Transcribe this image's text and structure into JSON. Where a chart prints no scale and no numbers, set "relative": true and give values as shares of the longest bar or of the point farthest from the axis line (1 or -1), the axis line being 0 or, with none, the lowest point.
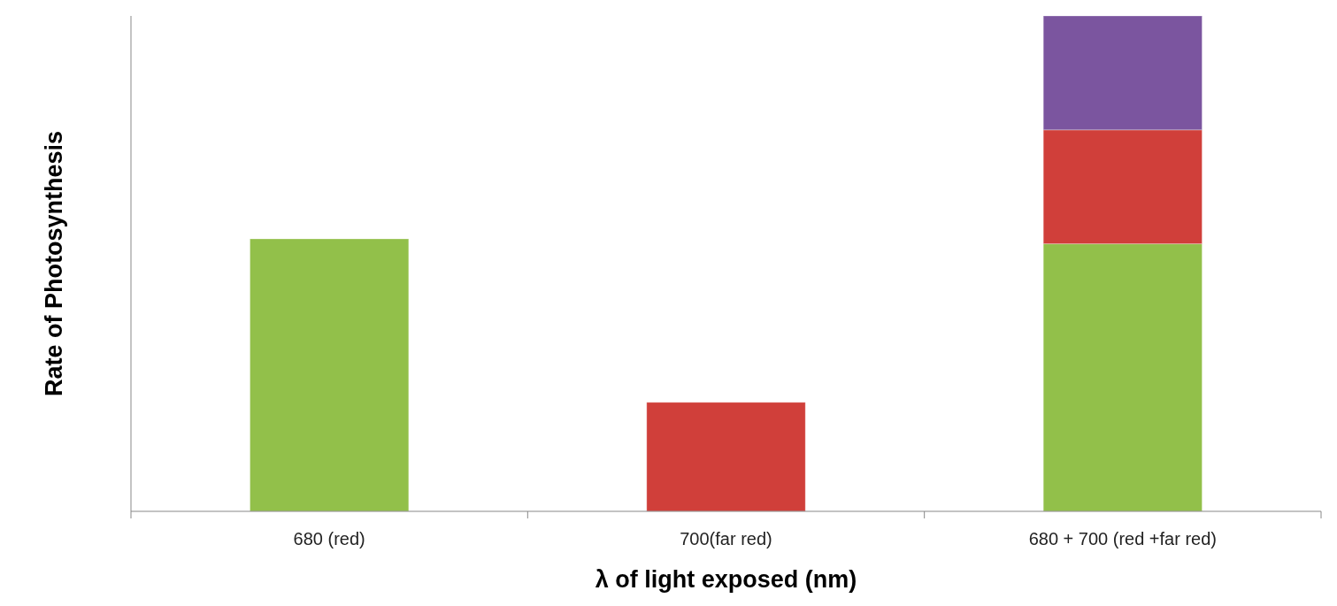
{
  "chart_data": {
    "type": "bar",
    "stacked": true,
    "relative": true,
    "xlabel": "λ of light exposed (nm)",
    "ylabel": "Rate of Photosynthesis",
    "categories": [
      "680 (red)",
      "700(far red)",
      "680 + 700 (red +far red)"
    ],
    "series": [
      {
        "color": "#92c04a",
        "values": [
          0.55,
          null,
          0.54
        ]
      },
      {
        "color": "#d03f3a",
        "values": [
          null,
          0.22,
          0.23
        ]
      },
      {
        "color": "#7b559f",
        "values": [
          null,
          null,
          0.23
        ]
      }
    ]
  }
}
